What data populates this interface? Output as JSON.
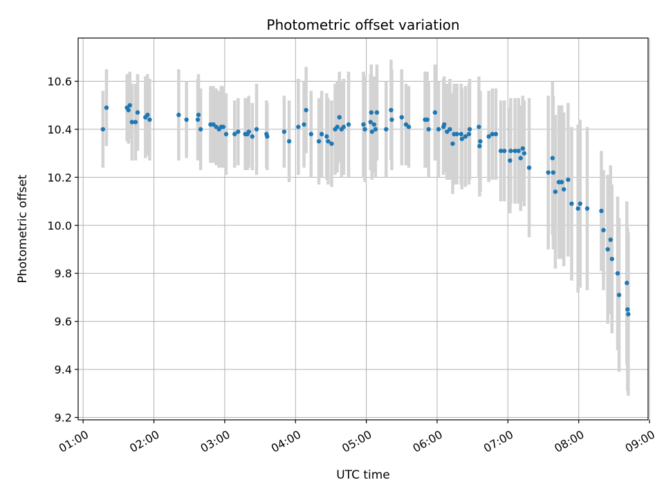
{
  "chart_data": {
    "type": "scatter",
    "title": "Photometric offset variation",
    "xlabel": "UTC time",
    "ylabel": "Photometric offset",
    "x_unit": "hours UTC",
    "xlim": [
      0.93,
      8.98
    ],
    "ylim": [
      9.19,
      10.78
    ],
    "x_ticks": [
      {
        "value": 1,
        "label": "01:00"
      },
      {
        "value": 2,
        "label": "02:00"
      },
      {
        "value": 3,
        "label": "03:00"
      },
      {
        "value": 4,
        "label": "04:00"
      },
      {
        "value": 5,
        "label": "05:00"
      },
      {
        "value": 6,
        "label": "06:00"
      },
      {
        "value": 7,
        "label": "07:00"
      },
      {
        "value": 8,
        "label": "08:00"
      },
      {
        "value": 9,
        "label": "09:00"
      }
    ],
    "y_ticks": [
      {
        "value": 9.2,
        "label": "9.2"
      },
      {
        "value": 9.4,
        "label": "9.4"
      },
      {
        "value": 9.6,
        "label": "9.6"
      },
      {
        "value": 9.8,
        "label": "9.8"
      },
      {
        "value": 10.0,
        "label": "10.0"
      },
      {
        "value": 10.2,
        "label": "10.2"
      },
      {
        "value": 10.4,
        "label": "10.4"
      },
      {
        "value": 10.6,
        "label": "10.6"
      }
    ],
    "grid": true,
    "colors": {
      "points": "#1f77b4",
      "error_bars": "#d3d3d3",
      "grid": "#b0b0b0"
    },
    "points": [
      [
        1.28,
        10.4,
        0.16
      ],
      [
        1.33,
        10.49,
        0.16
      ],
      [
        1.62,
        10.49,
        0.14
      ],
      [
        1.64,
        10.48,
        0.14
      ],
      [
        1.66,
        10.5,
        0.14
      ],
      [
        1.69,
        10.43,
        0.16
      ],
      [
        1.74,
        10.43,
        0.16
      ],
      [
        1.77,
        10.47,
        0.16
      ],
      [
        1.88,
        10.45,
        0.17
      ],
      [
        1.91,
        10.46,
        0.17
      ],
      [
        1.94,
        10.44,
        0.17
      ],
      [
        2.35,
        10.46,
        0.19
      ],
      [
        2.46,
        10.44,
        0.16
      ],
      [
        2.62,
        10.44,
        0.17
      ],
      [
        2.63,
        10.46,
        0.17
      ],
      [
        2.66,
        10.4,
        0.17
      ],
      [
        2.8,
        10.42,
        0.16
      ],
      [
        2.84,
        10.42,
        0.16
      ],
      [
        2.88,
        10.41,
        0.16
      ],
      [
        2.92,
        10.4,
        0.16
      ],
      [
        2.95,
        10.41,
        0.17
      ],
      [
        2.98,
        10.41,
        0.17
      ],
      [
        3.02,
        10.38,
        0.17
      ],
      [
        3.14,
        10.38,
        0.14
      ],
      [
        3.19,
        10.39,
        0.14
      ],
      [
        3.29,
        10.38,
        0.15
      ],
      [
        3.32,
        10.38,
        0.15
      ],
      [
        3.34,
        10.39,
        0.15
      ],
      [
        3.39,
        10.37,
        0.14
      ],
      [
        3.45,
        10.4,
        0.19
      ],
      [
        3.59,
        10.38,
        0.14
      ],
      [
        3.6,
        10.37,
        0.14
      ],
      [
        3.84,
        10.39,
        0.15
      ],
      [
        3.91,
        10.35,
        0.17
      ],
      [
        4.04,
        10.41,
        0.2
      ],
      [
        4.12,
        10.42,
        0.18
      ],
      [
        4.15,
        10.48,
        0.18
      ],
      [
        4.22,
        10.38,
        0.18
      ],
      [
        4.33,
        10.35,
        0.18
      ],
      [
        4.37,
        10.38,
        0.18
      ],
      [
        4.44,
        10.37,
        0.18
      ],
      [
        4.46,
        10.35,
        0.18
      ],
      [
        4.51,
        10.34,
        0.18
      ],
      [
        4.56,
        10.4,
        0.19
      ],
      [
        4.59,
        10.41,
        0.19
      ],
      [
        4.62,
        10.45,
        0.19
      ],
      [
        4.65,
        10.4,
        0.2
      ],
      [
        4.68,
        10.41,
        0.2
      ],
      [
        4.75,
        10.42,
        0.22
      ],
      [
        4.96,
        10.42,
        0.22
      ],
      [
        4.98,
        10.4,
        0.22
      ],
      [
        5.06,
        10.43,
        0.2
      ],
      [
        5.07,
        10.47,
        0.2
      ],
      [
        5.08,
        10.39,
        0.2
      ],
      [
        5.11,
        10.42,
        0.2
      ],
      [
        5.13,
        10.4,
        0.2
      ],
      [
        5.15,
        10.47,
        0.2
      ],
      [
        5.28,
        10.4,
        0.2
      ],
      [
        5.35,
        10.48,
        0.21
      ],
      [
        5.36,
        10.44,
        0.21
      ],
      [
        5.5,
        10.45,
        0.2
      ],
      [
        5.56,
        10.42,
        0.17
      ],
      [
        5.6,
        10.41,
        0.17
      ],
      [
        5.83,
        10.44,
        0.2
      ],
      [
        5.86,
        10.44,
        0.2
      ],
      [
        5.88,
        10.4,
        0.2
      ],
      [
        5.97,
        10.47,
        0.2
      ],
      [
        6.02,
        10.4,
        0.2
      ],
      [
        6.09,
        10.41,
        0.2
      ],
      [
        6.1,
        10.42,
        0.2
      ],
      [
        6.14,
        10.39,
        0.2
      ],
      [
        6.18,
        10.4,
        0.21
      ],
      [
        6.22,
        10.34,
        0.21
      ],
      [
        6.24,
        10.38,
        0.21
      ],
      [
        6.28,
        10.38,
        0.21
      ],
      [
        6.34,
        10.38,
        0.21
      ],
      [
        6.35,
        10.36,
        0.21
      ],
      [
        6.4,
        10.37,
        0.21
      ],
      [
        6.45,
        10.38,
        0.21
      ],
      [
        6.46,
        10.4,
        0.21
      ],
      [
        6.59,
        10.41,
        0.21
      ],
      [
        6.6,
        10.33,
        0.21
      ],
      [
        6.61,
        10.35,
        0.21
      ],
      [
        6.73,
        10.37,
        0.19
      ],
      [
        6.78,
        10.38,
        0.19
      ],
      [
        6.83,
        10.38,
        0.19
      ],
      [
        6.9,
        10.31,
        0.21
      ],
      [
        6.95,
        10.31,
        0.21
      ],
      [
        7.03,
        10.27,
        0.22
      ],
      [
        7.04,
        10.31,
        0.22
      ],
      [
        7.1,
        10.31,
        0.22
      ],
      [
        7.15,
        10.31,
        0.22
      ],
      [
        7.18,
        10.28,
        0.22
      ],
      [
        7.21,
        10.32,
        0.22
      ],
      [
        7.23,
        10.3,
        0.22
      ],
      [
        7.3,
        10.24,
        0.29
      ],
      [
        7.57,
        10.22,
        0.32
      ],
      [
        7.63,
        10.28,
        0.32
      ],
      [
        7.64,
        10.22,
        0.32
      ],
      [
        7.67,
        10.14,
        0.32
      ],
      [
        7.72,
        10.18,
        0.32
      ],
      [
        7.76,
        10.18,
        0.32
      ],
      [
        7.79,
        10.15,
        0.32
      ],
      [
        7.85,
        10.19,
        0.32
      ],
      [
        7.9,
        10.09,
        0.32
      ],
      [
        7.99,
        10.07,
        0.35
      ],
      [
        8.02,
        10.09,
        0.35
      ],
      [
        8.12,
        10.07,
        0.34
      ],
      [
        8.32,
        10.06,
        0.25
      ],
      [
        8.35,
        9.98,
        0.25
      ],
      [
        8.41,
        9.9,
        0.31
      ],
      [
        8.45,
        9.94,
        0.31
      ],
      [
        8.47,
        9.86,
        0.31
      ],
      [
        8.55,
        9.8,
        0.32
      ],
      [
        8.57,
        9.71,
        0.32
      ],
      [
        8.68,
        9.76,
        0.34
      ],
      [
        8.69,
        9.65,
        0.34
      ],
      [
        8.7,
        9.63,
        0.34
      ]
    ]
  }
}
